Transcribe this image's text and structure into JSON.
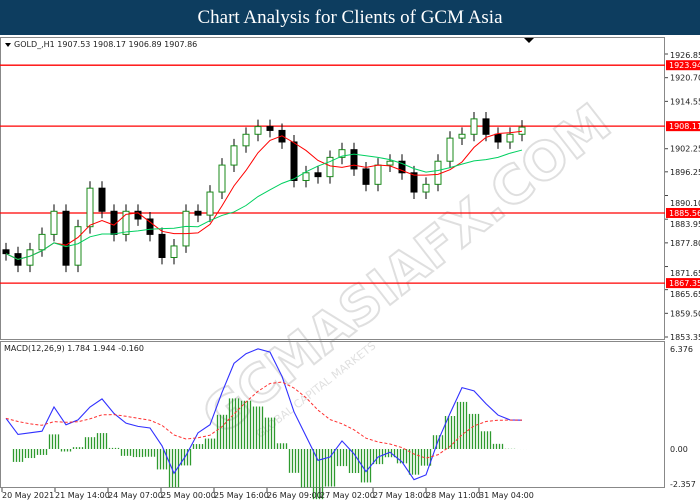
{
  "title": "Chart Analysis for Clients of GCM Asia",
  "chart_data": [
    {
      "type": "candlestick",
      "header": "GOLD_,H1  1907.53 1908.17 1906.89 1907.86",
      "symbol": "GOLD_",
      "timeframe": "H1",
      "ohlc_last": {
        "open": 1907.53,
        "high": 1908.17,
        "low": 1906.89,
        "close": 1907.86
      },
      "ylim": [
        1853.35,
        1926.85
      ],
      "y_ticks": [
        "1926.85",
        "1920.70",
        "1914.55",
        "1902.25",
        "1896.25",
        "1890.10",
        "1883.95",
        "1877.80",
        "1871.65",
        "1865.65",
        "1859.50",
        "1853.35"
      ],
      "closes": [
        1875,
        1872,
        1876,
        1880,
        1886,
        1872,
        1882,
        1892,
        1886,
        1880,
        1886,
        1884,
        1880,
        1874,
        1877,
        1886,
        1885,
        1891,
        1898,
        1903,
        1906,
        1908,
        1907,
        1904,
        1894,
        1896,
        1895,
        1900,
        1902,
        1897,
        1893,
        1898,
        1899,
        1896,
        1891,
        1893,
        1899,
        1905,
        1906,
        1910,
        1906,
        1904,
        1906,
        1907.86
      ],
      "horizontal_levels": [
        "1923.94",
        "1908.11",
        "1885.56",
        "1867.35"
      ],
      "level_color": "#ff0000",
      "ma_colors": {
        "fast": "#ff0000",
        "slow": "#00d060"
      },
      "x_ticks": [
        "20 May 2021",
        "21 May 14:00",
        "24 May 07:00",
        "25 May 00:00",
        "25 May 16:00",
        "26 May 09:00",
        "27 May 02:00",
        "27 May 18:00",
        "28 May 11:00",
        "31 May 04:00"
      ]
    },
    {
      "type": "line+bar",
      "header": "MACD(12,26,9) 1.784 1.944 -0.160",
      "ylim": [
        -2.357,
        6.376
      ],
      "y_ticks": [
        "6.376",
        "0.00",
        "-2.357"
      ],
      "macd": [
        1.9,
        0.9,
        1.0,
        1.1,
        2.6,
        1.5,
        1.8,
        2.6,
        3.1,
        2.2,
        1.6,
        1.4,
        1.3,
        0.2,
        -1.5,
        -0.4,
        1.0,
        1.5,
        3.5,
        5.3,
        5.9,
        6.2,
        6.0,
        4.5,
        2.3,
        0.8,
        -0.7,
        -0.5,
        0.5,
        -0.3,
        -1.4,
        -0.5,
        -0.2,
        -0.8,
        -1.9,
        -1.6,
        0.5,
        2.2,
        3.8,
        3.6,
        2.8,
        2.1,
        1.8,
        1.784
      ],
      "colors": {
        "macd": "#3030ff",
        "signal": "#ff3030",
        "histogram": "#2e9a2e"
      }
    }
  ],
  "watermark": {
    "text": "GCMASIAFX.COM",
    "subtext": "GLOBAL CAPITAL MARKETS"
  }
}
